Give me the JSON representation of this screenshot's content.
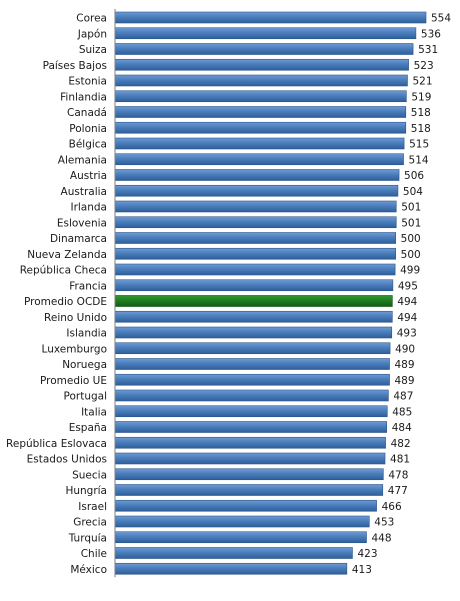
{
  "chart_data": {
    "type": "bar",
    "orientation": "horizontal",
    "title": "",
    "xlabel": "",
    "ylabel": "",
    "xlim": [
      0,
      554
    ],
    "grid": false,
    "legend": "none",
    "colors": {
      "default_bar": "#4A7EBB",
      "highlight_bar": "#1E7B1E"
    },
    "highlight_category": "Promedio OCDE",
    "categories": [
      "Corea",
      "Japón",
      "Suiza",
      "Países Bajos",
      "Estonia",
      "Finlandia",
      "Canadá",
      "Polonia",
      "Bélgica",
      "Alemania",
      "Austria",
      "Australia",
      "Irlanda",
      "Eslovenia",
      "Dinamarca",
      "Nueva Zelanda",
      "República Checa",
      "Francia",
      "Promedio OCDE",
      "Reino Unido",
      "Islandia",
      "Luxemburgo",
      "Noruega",
      "Promedio UE",
      "Portugal",
      "Italia",
      "España",
      "República Eslovaca",
      "Estados Unidos",
      "Suecia",
      "Hungría",
      "Israel",
      "Grecia",
      "Turquía",
      "Chile",
      "México"
    ],
    "values": [
      554,
      536,
      531,
      523,
      521,
      519,
      518,
      518,
      515,
      514,
      506,
      504,
      501,
      501,
      500,
      500,
      499,
      495,
      494,
      494,
      493,
      490,
      489,
      489,
      487,
      485,
      484,
      482,
      481,
      478,
      477,
      466,
      453,
      448,
      423,
      413
    ]
  }
}
